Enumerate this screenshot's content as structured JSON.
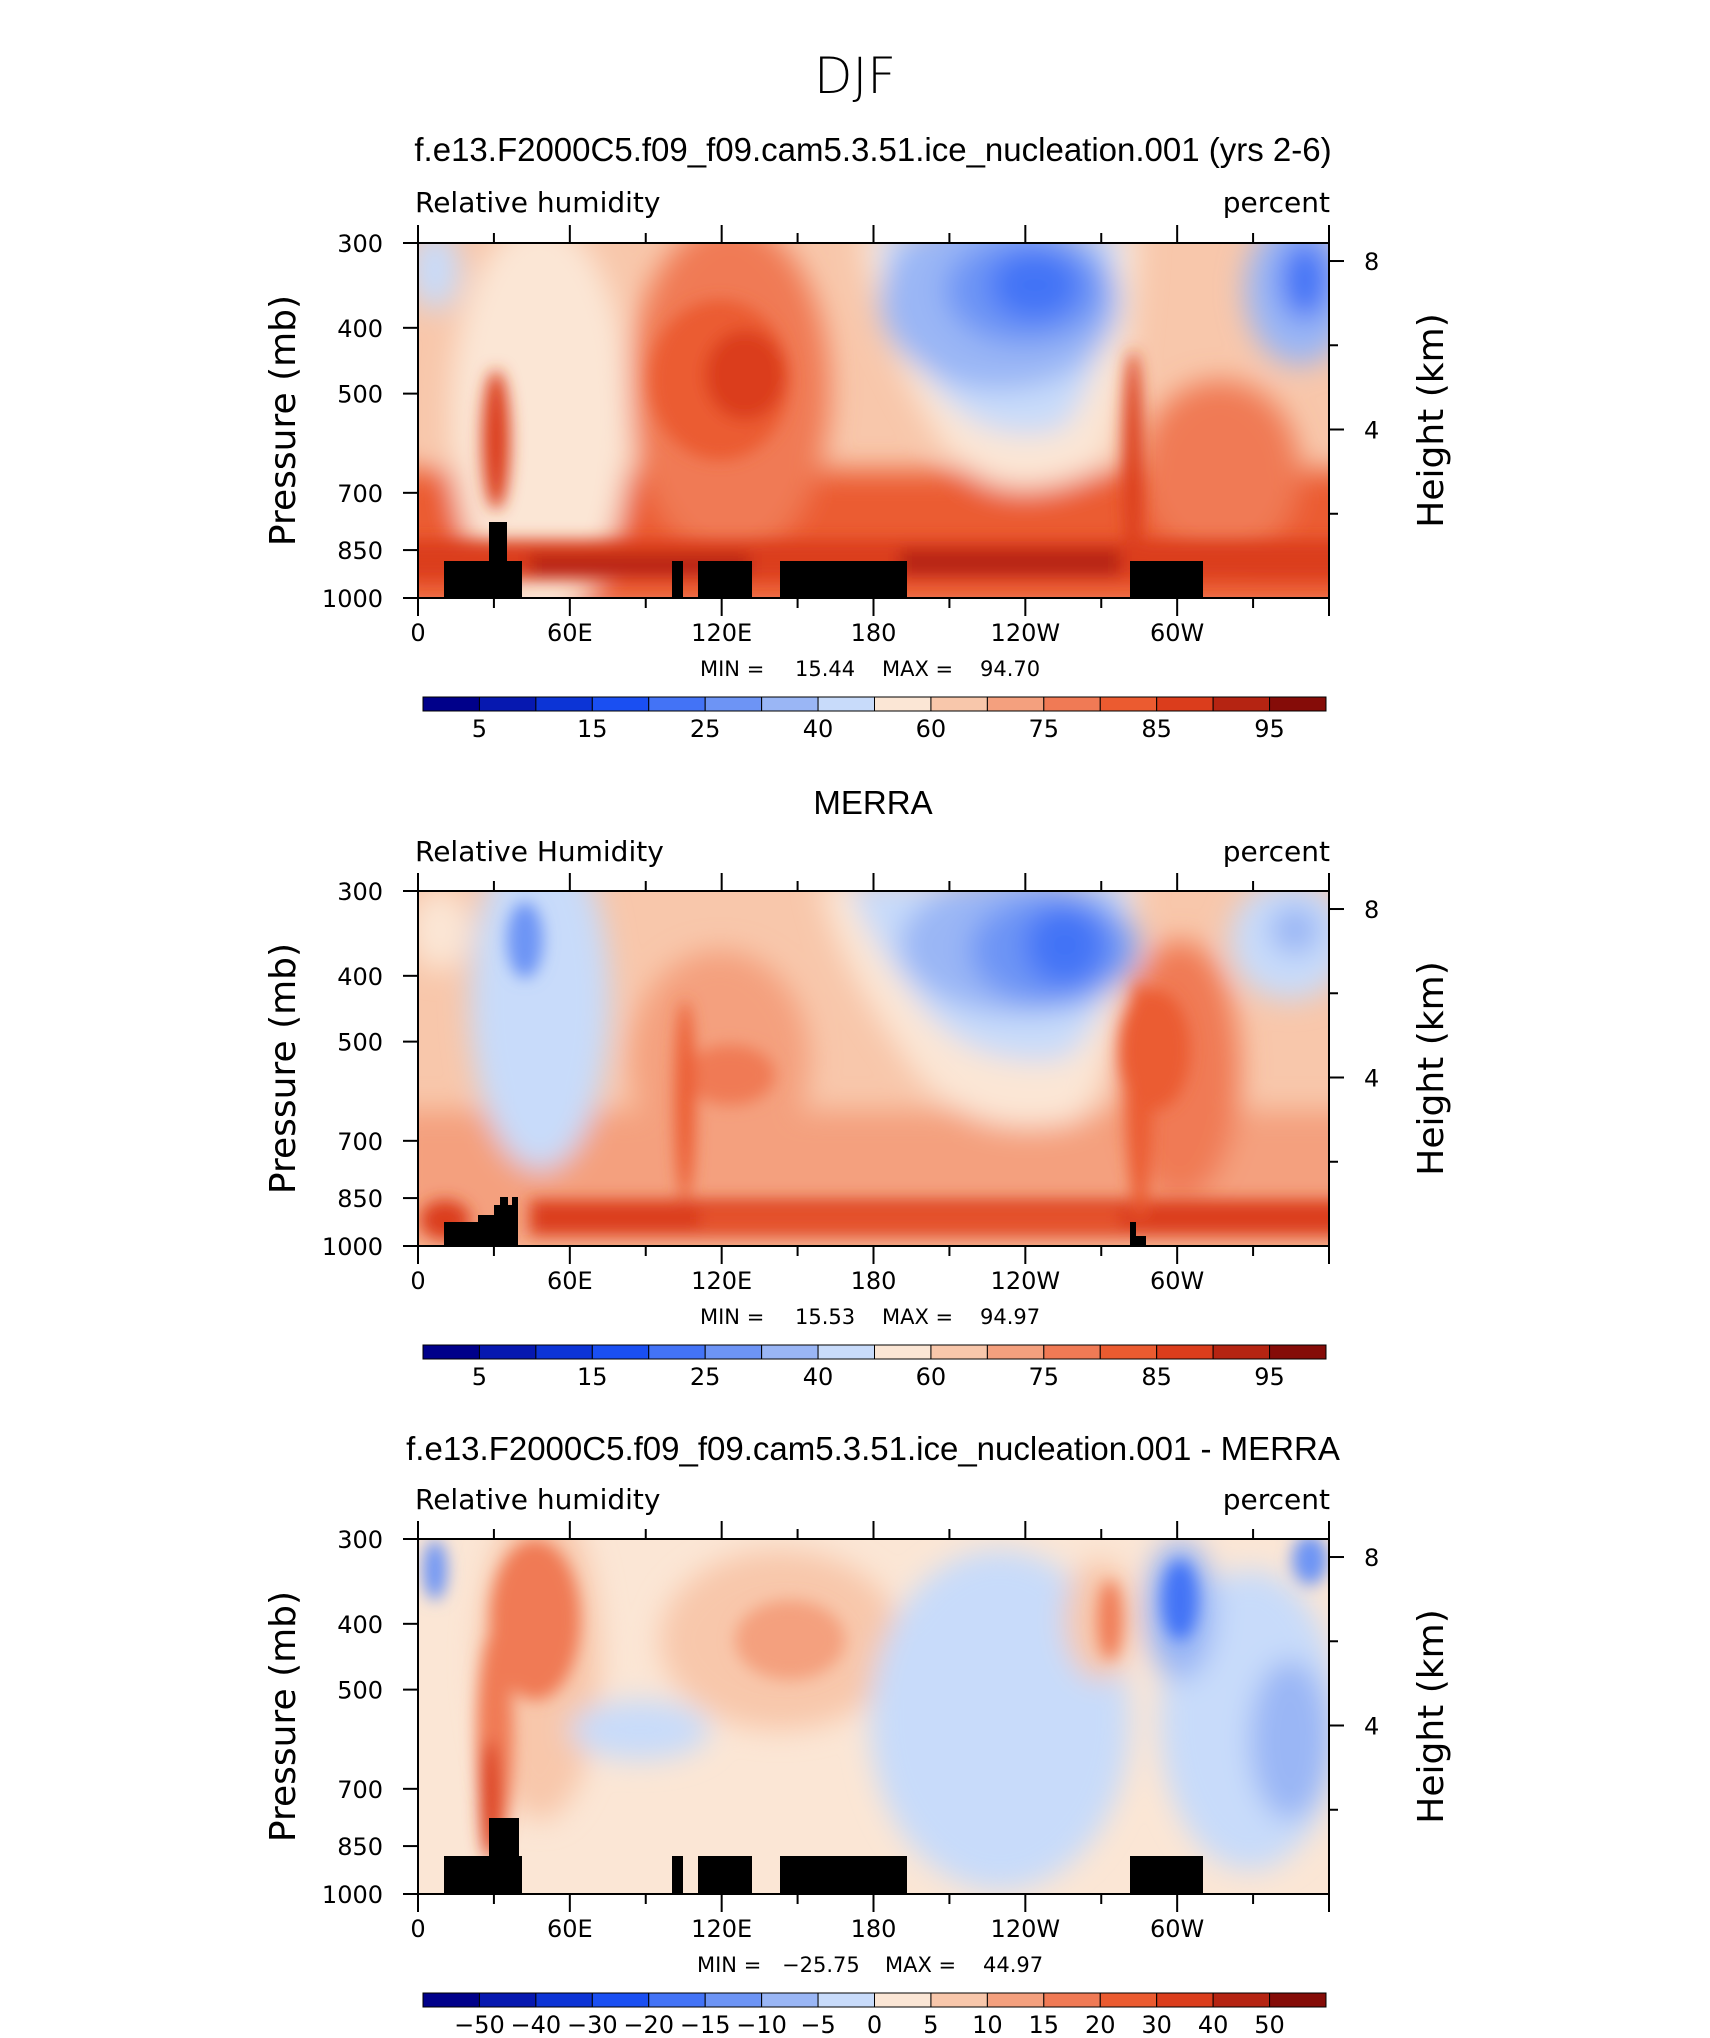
{
  "page_title": "DJF",
  "chart_data": [
    {
      "type": "heatmap",
      "title": "f.e13.F2000C5.f09_f09.cam5.3.51.ice_nucleation.001 (yrs 2-6)",
      "left_label": "Relative humidity",
      "right_label": "percent",
      "ylabel": "Pressure (mb)",
      "ylabel_right": "Height (km)",
      "x_ticks": [
        "0",
        "60E",
        "120E",
        "180",
        "120W",
        "60W"
      ],
      "y_ticks": [
        "300",
        "400",
        "500",
        "700",
        "850",
        "1000"
      ],
      "y_ticks_right": [
        "8",
        "4"
      ],
      "stats": {
        "min_label": "MIN =",
        "min": "15.44",
        "max_label": "MAX =",
        "max": "94.70"
      },
      "colorbar_labels": [
        "5",
        "15",
        "25",
        "40",
        "60",
        "75",
        "85",
        "95"
      ],
      "ylim": [
        1000,
        300
      ],
      "xlim": [
        0,
        360
      ]
    },
    {
      "type": "heatmap",
      "title": "MERRA",
      "left_label": "Relative Humidity",
      "right_label": "percent",
      "ylabel": "Pressure (mb)",
      "ylabel_right": "Height (km)",
      "x_ticks": [
        "0",
        "60E",
        "120E",
        "180",
        "120W",
        "60W"
      ],
      "y_ticks": [
        "300",
        "400",
        "500",
        "700",
        "850",
        "1000"
      ],
      "y_ticks_right": [
        "8",
        "4"
      ],
      "stats": {
        "min_label": "MIN =",
        "min": "15.53",
        "max_label": "MAX =",
        "max": "94.97"
      },
      "colorbar_labels": [
        "5",
        "15",
        "25",
        "40",
        "60",
        "75",
        "85",
        "95"
      ],
      "ylim": [
        1000,
        300
      ],
      "xlim": [
        0,
        360
      ]
    },
    {
      "type": "heatmap",
      "title": "f.e13.F2000C5.f09_f09.cam5.3.51.ice_nucleation.001 - MERRA",
      "left_label": "Relative humidity",
      "right_label": "percent",
      "ylabel": "Pressure (mb)",
      "ylabel_right": "Height (km)",
      "x_ticks": [
        "0",
        "60E",
        "120E",
        "180",
        "120W",
        "60W"
      ],
      "y_ticks": [
        "300",
        "400",
        "500",
        "700",
        "850",
        "1000"
      ],
      "y_ticks_right": [
        "8",
        "4"
      ],
      "stats": {
        "min_label": "MIN =",
        "min": "−25.75",
        "max_label": "MAX =",
        "max": "44.97"
      },
      "colorbar_labels": [
        "−50",
        "−40",
        "−30",
        "−20",
        "−15",
        "−10",
        "−5",
        "0",
        "5",
        "10",
        "15",
        "20",
        "30",
        "40",
        "50"
      ],
      "ylim": [
        1000,
        300
      ],
      "xlim": [
        0,
        360
      ]
    }
  ],
  "colors": {
    "colorbar_16": [
      "#00008a",
      "#0618b0",
      "#0c34d6",
      "#1a4ff2",
      "#4373f6",
      "#6d94f5",
      "#9ab6f5",
      "#c8dbfa",
      "#fbe6d5",
      "#f8c7ab",
      "#f4a07e",
      "#f07a55",
      "#eb5b30",
      "#db3d1c",
      "#b52412",
      "#850c08"
    ],
    "colorbar_16_diff": [
      "#00008a",
      "#0618b0",
      "#0c34d6",
      "#1a4ff2",
      "#4373f6",
      "#6d94f5",
      "#9ab6f5",
      "#c8dbfa",
      "#fbe6d5",
      "#f8c7ab",
      "#f4a07e",
      "#f07a55",
      "#eb5b30",
      "#db3d1c",
      "#b52412",
      "#850c08"
    ],
    "topography": "#000000"
  }
}
